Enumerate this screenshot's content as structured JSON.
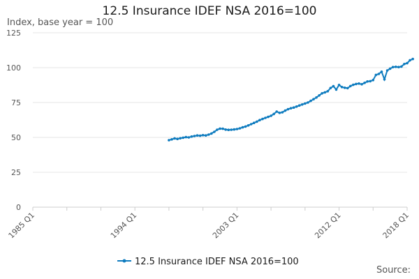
{
  "title": "12.5 Insurance IDEF NSA 2016=100",
  "source_label": "Source:",
  "colors": {
    "series": "#0f7cbf",
    "grid": "#e6e6e6",
    "axis": "#cccccc"
  },
  "chart_data": {
    "type": "line",
    "title": "12.5 Insurance IDEF NSA 2016=100",
    "ylabel": "Index, base year = 100",
    "xlabel": "",
    "ylim": [
      0,
      125
    ],
    "yticks": [
      0,
      25,
      50,
      75,
      100,
      125
    ],
    "xlim": [
      1985,
      2018
    ],
    "xticks": [
      {
        "value": 1985,
        "label": "1985 Q1"
      },
      {
        "value": 1994,
        "label": "1994 Q1"
      },
      {
        "value": 2003,
        "label": "2003 Q1"
      },
      {
        "value": 2012,
        "label": "2012 Q1"
      },
      {
        "value": 2018,
        "label": "2018 Q1"
      }
    ],
    "grid": true,
    "legend": "bottom-center",
    "series": [
      {
        "name": "12.5 Insurance IDEF NSA 2016=100",
        "points": [
          [
            1997.0,
            48.0
          ],
          [
            1997.25,
            48.6
          ],
          [
            1997.5,
            49.3
          ],
          [
            1997.75,
            48.9
          ],
          [
            1998.0,
            49.4
          ],
          [
            1998.25,
            49.8
          ],
          [
            1998.5,
            50.2
          ],
          [
            1998.75,
            50.0
          ],
          [
            1999.0,
            50.6
          ],
          [
            1999.25,
            51.0
          ],
          [
            1999.5,
            51.4
          ],
          [
            1999.75,
            51.2
          ],
          [
            2000.0,
            51.6
          ],
          [
            2000.25,
            51.4
          ],
          [
            2000.5,
            52.0
          ],
          [
            2000.75,
            52.8
          ],
          [
            2001.0,
            54.0
          ],
          [
            2001.25,
            55.5
          ],
          [
            2001.5,
            56.3
          ],
          [
            2001.75,
            56.2
          ],
          [
            2002.0,
            55.6
          ],
          [
            2002.25,
            55.4
          ],
          [
            2002.5,
            55.5
          ],
          [
            2002.75,
            55.7
          ],
          [
            2003.0,
            56.0
          ],
          [
            2003.25,
            56.5
          ],
          [
            2003.5,
            57.2
          ],
          [
            2003.75,
            57.8
          ],
          [
            2004.0,
            58.6
          ],
          [
            2004.25,
            59.5
          ],
          [
            2004.5,
            60.4
          ],
          [
            2004.75,
            61.3
          ],
          [
            2005.0,
            62.4
          ],
          [
            2005.25,
            63.2
          ],
          [
            2005.5,
            64.0
          ],
          [
            2005.75,
            64.7
          ],
          [
            2006.0,
            65.5
          ],
          [
            2006.25,
            66.8
          ],
          [
            2006.5,
            68.5
          ],
          [
            2006.75,
            67.6
          ],
          [
            2007.0,
            68.0
          ],
          [
            2007.25,
            69.2
          ],
          [
            2007.5,
            70.2
          ],
          [
            2007.75,
            70.9
          ],
          [
            2008.0,
            71.4
          ],
          [
            2008.25,
            72.1
          ],
          [
            2008.5,
            72.9
          ],
          [
            2008.75,
            73.6
          ],
          [
            2009.0,
            74.3
          ],
          [
            2009.25,
            75.0
          ],
          [
            2009.5,
            76.2
          ],
          [
            2009.75,
            77.4
          ],
          [
            2010.0,
            78.6
          ],
          [
            2010.25,
            80.1
          ],
          [
            2010.5,
            81.6
          ],
          [
            2010.75,
            82.3
          ],
          [
            2011.0,
            83.1
          ],
          [
            2011.25,
            85.4
          ],
          [
            2011.5,
            86.7
          ],
          [
            2011.75,
            84.3
          ],
          [
            2012.0,
            87.6
          ],
          [
            2012.25,
            86.1
          ],
          [
            2012.5,
            85.6
          ],
          [
            2012.75,
            85.3
          ],
          [
            2013.0,
            86.8
          ],
          [
            2013.25,
            87.7
          ],
          [
            2013.5,
            88.3
          ],
          [
            2013.75,
            88.6
          ],
          [
            2014.0,
            88.1
          ],
          [
            2014.25,
            89.1
          ],
          [
            2014.5,
            90.1
          ],
          [
            2014.75,
            90.3
          ],
          [
            2015.0,
            91.1
          ],
          [
            2015.25,
            94.8
          ],
          [
            2015.5,
            95.5
          ],
          [
            2015.75,
            97.1
          ],
          [
            2016.0,
            91.6
          ],
          [
            2016.25,
            98.0
          ],
          [
            2016.5,
            99.3
          ],
          [
            2016.75,
            100.4
          ],
          [
            2017.0,
            100.6
          ],
          [
            2017.25,
            100.4
          ],
          [
            2017.5,
            100.8
          ],
          [
            2017.75,
            102.6
          ],
          [
            2018.0,
            103.2
          ],
          [
            2018.25,
            105.3
          ],
          [
            2018.5,
            106.2
          ]
        ]
      }
    ]
  }
}
